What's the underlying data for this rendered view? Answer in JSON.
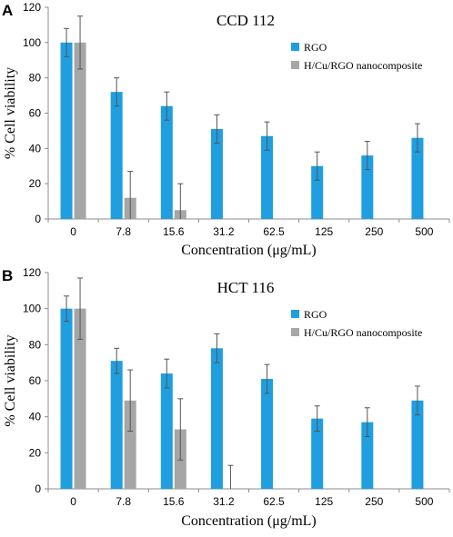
{
  "colors": {
    "rgo": "#1f9ee0",
    "composite": "#a6a6a6",
    "error_bar": "#555555",
    "axis": "#8c8c8c"
  },
  "chart_data": [
    {
      "type": "bar",
      "panel_label": "A",
      "title": "CCD 112",
      "xlabel": "Concentration (μg/mL)",
      "ylabel": "% Cell viability",
      "ylim": [
        0,
        120
      ],
      "yticks": [
        0,
        20,
        40,
        60,
        80,
        100,
        120
      ],
      "grid": false,
      "legend_position": "top-right",
      "categories": [
        "0",
        "7.8",
        "15.6",
        "31.2",
        "62.5",
        "125",
        "250",
        "500"
      ],
      "series": [
        {
          "name": "RGO",
          "values": [
            100,
            72,
            64,
            51,
            47,
            30,
            36,
            46
          ],
          "errors": [
            8,
            8,
            8,
            8,
            8,
            8,
            8,
            8
          ]
        },
        {
          "name": "H/Cu/RGO nanocomposite",
          "values": [
            100,
            12,
            5,
            null,
            null,
            null,
            null,
            null
          ],
          "errors": [
            15,
            15,
            15,
            null,
            null,
            null,
            null,
            null
          ]
        }
      ]
    },
    {
      "type": "bar",
      "panel_label": "B",
      "title": "HCT 116",
      "xlabel": "Concentration (μg/mL)",
      "ylabel": "% Cell viability",
      "ylim": [
        0,
        120
      ],
      "yticks": [
        0,
        20,
        40,
        60,
        80,
        100,
        120
      ],
      "grid": false,
      "legend_position": "top-right",
      "categories": [
        "0",
        "7.8",
        "15.6",
        "31.2",
        "62.5",
        "125",
        "250",
        "500"
      ],
      "series": [
        {
          "name": "RGO",
          "values": [
            100,
            71,
            64,
            78,
            61,
            39,
            37,
            49
          ],
          "errors": [
            7,
            7,
            8,
            8,
            8,
            7,
            8,
            8
          ]
        },
        {
          "name": "H/Cu/RGO nanocomposite",
          "values": [
            100,
            49,
            33,
            0,
            null,
            null,
            null,
            null
          ],
          "errors": [
            17,
            17,
            17,
            13,
            null,
            null,
            null,
            null
          ]
        }
      ]
    }
  ]
}
